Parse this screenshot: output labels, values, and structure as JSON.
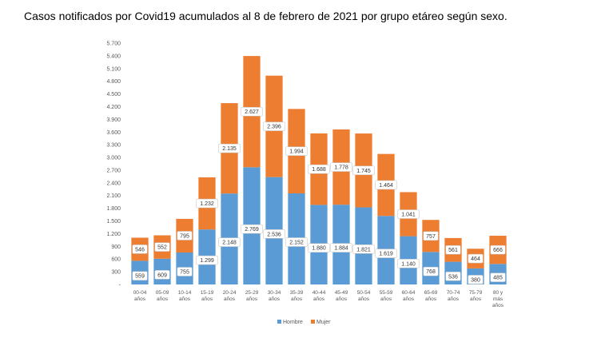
{
  "title": "Casos notificados por Covid19 acumulados al 8 de febrero de 2021 por grupo etáreo según sexo.",
  "colors": {
    "hombre": "#5B9BD5",
    "mujer": "#ED7D31",
    "label_bg": "#ffffff",
    "label_text": "#333333"
  },
  "chart_data": {
    "type": "bar",
    "stacked": true,
    "categories": [
      [
        "00-04",
        "años"
      ],
      [
        "05-09",
        "años"
      ],
      [
        "10-14",
        "años"
      ],
      [
        "15-19",
        "años"
      ],
      [
        "20-24",
        "años"
      ],
      [
        "25-29",
        "años"
      ],
      [
        "30-34",
        "años"
      ],
      [
        "35-39",
        "años"
      ],
      [
        "40-44",
        "años"
      ],
      [
        "45-49",
        "años"
      ],
      [
        "50-54",
        "años"
      ],
      [
        "55-59",
        "años"
      ],
      [
        "60-64",
        "años"
      ],
      [
        "65-69",
        "años"
      ],
      [
        "70-74",
        "años"
      ],
      [
        "75-79",
        "años"
      ],
      [
        "80 y",
        "más",
        "años"
      ]
    ],
    "series": [
      {
        "name": "Hombre",
        "values": [
          559,
          609,
          755,
          1299,
          2148,
          2769,
          2536,
          2152,
          1880,
          1884,
          1821,
          1619,
          1140,
          768,
          536,
          380,
          485
        ],
        "labels": [
          "559",
          "609",
          "755",
          "1.299",
          "2.148",
          "2.769",
          "2.536",
          "2.152",
          "1.880",
          "1.884",
          "1.821",
          "1.619",
          "1.140",
          "768",
          "536",
          "380",
          "485"
        ]
      },
      {
        "name": "Mujer",
        "values": [
          546,
          552,
          795,
          1232,
          2135,
          2627,
          2396,
          1994,
          1688,
          1778,
          1745,
          1464,
          1041,
          757,
          561,
          464,
          666
        ],
        "labels": [
          "546",
          "552",
          "795",
          "1.232",
          "2.135",
          "2.627",
          "2.396",
          "1.994",
          "1.688",
          "1.778",
          "1.745",
          "1.464",
          "1.041",
          "757",
          "561",
          "464",
          "666"
        ]
      }
    ],
    "ylim": [
      0,
      5700
    ],
    "yticks": [
      {
        "value": 0,
        "label": "-"
      },
      {
        "value": 300,
        "label": "300"
      },
      {
        "value": 600,
        "label": "600"
      },
      {
        "value": 900,
        "label": "900"
      },
      {
        "value": 1200,
        "label": "1.200"
      },
      {
        "value": 1500,
        "label": "1.500"
      },
      {
        "value": 1800,
        "label": "1.800"
      },
      {
        "value": 2100,
        "label": "2.100"
      },
      {
        "value": 2400,
        "label": "2.400"
      },
      {
        "value": 2700,
        "label": "2.700"
      },
      {
        "value": 3000,
        "label": "3.000"
      },
      {
        "value": 3300,
        "label": "3.300"
      },
      {
        "value": 3600,
        "label": "3.600"
      },
      {
        "value": 3900,
        "label": "3.900"
      },
      {
        "value": 4200,
        "label": "4.200"
      },
      {
        "value": 4500,
        "label": "4.500"
      },
      {
        "value": 4800,
        "label": "4.800"
      },
      {
        "value": 5100,
        "label": "5.100"
      },
      {
        "value": 5400,
        "label": "5.400"
      },
      {
        "value": 5700,
        "label": "5.700"
      }
    ],
    "grid": false,
    "legend": "bottom"
  }
}
